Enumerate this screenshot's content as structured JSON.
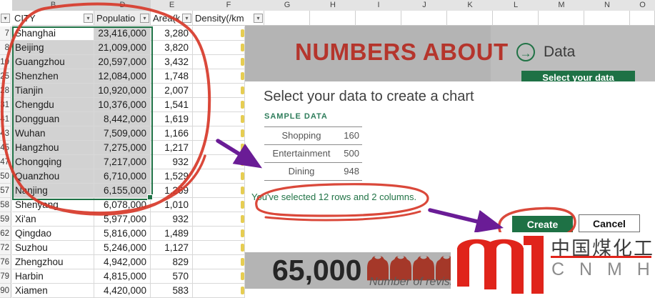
{
  "spreadsheet": {
    "column_letters": [
      "B",
      "D",
      "E",
      "F",
      "G",
      "H",
      "I",
      "J",
      "K",
      "L",
      "M",
      "N",
      "O"
    ],
    "table_headers": [
      {
        "label": "CITY"
      },
      {
        "label": "Populatio"
      },
      {
        "label": "Area(k"
      },
      {
        "label": "Density(/km"
      }
    ],
    "rows": [
      {
        "n": "7",
        "city": "Shanghai",
        "population": "23,416,000",
        "area": "3,280"
      },
      {
        "n": "8",
        "city": "Beijing",
        "population": "21,009,000",
        "area": "3,820"
      },
      {
        "n": "10",
        "city": "Guangzhou",
        "population": "20,597,000",
        "area": "3,432"
      },
      {
        "n": "25",
        "city": "Shenzhen",
        "population": "12,084,000",
        "area": "1,748"
      },
      {
        "n": "28",
        "city": "Tianjin",
        "population": "10,920,000",
        "area": "2,007"
      },
      {
        "n": "31",
        "city": "Chengdu",
        "population": "10,376,000",
        "area": "1,541"
      },
      {
        "n": "41",
        "city": "Dongguan",
        "population": "8,442,000",
        "area": "1,619"
      },
      {
        "n": "43",
        "city": "Wuhan",
        "population": "7,509,000",
        "area": "1,166"
      },
      {
        "n": "45",
        "city": "Hangzhou",
        "population": "7,275,000",
        "area": "1,217"
      },
      {
        "n": "47",
        "city": "Chongqing",
        "population": "7,217,000",
        "area": "932"
      },
      {
        "n": "50",
        "city": "Quanzhou",
        "population": "6,710,000",
        "area": "1,529"
      },
      {
        "n": "57",
        "city": "Nanjing",
        "population": "6,155,000",
        "area": "1,269"
      },
      {
        "n": "58",
        "city": "Shenyang",
        "population": "6,078,000",
        "area": "1,010"
      },
      {
        "n": "59",
        "city": "Xi'an",
        "population": "5,977,000",
        "area": "932"
      },
      {
        "n": "62",
        "city": "Qingdao",
        "population": "5,816,000",
        "area": "1,489"
      },
      {
        "n": "72",
        "city": "Suzhou",
        "population": "5,246,000",
        "area": "1,127"
      },
      {
        "n": "76",
        "city": "Zhengzhou",
        "population": "4,942,000",
        "area": "829"
      },
      {
        "n": "79",
        "city": "Harbin",
        "population": "4,815,000",
        "area": "570"
      },
      {
        "n": "90",
        "city": "Xiamen",
        "population": "4,420,000",
        "area": "583"
      }
    ],
    "selected_row_count": 12,
    "filter_icon": "▾"
  },
  "panel": {
    "banner": {
      "title": "NUMBERS ABOUT",
      "nav_label": "Data",
      "nav_icon": "→"
    },
    "select_data_button": "Select your data",
    "dialog": {
      "heading": "Select your data to create a chart",
      "sample_heading": "SAMPLE DATA",
      "sample_rows": [
        {
          "label": "Shopping",
          "value": "160"
        },
        {
          "label": "Entertainment",
          "value": "500"
        },
        {
          "label": "Dining",
          "value": "948"
        }
      ],
      "selection_message": "You've selected 12 rows and 2 columns.",
      "create_label": "Create",
      "cancel_label": "Cancel"
    },
    "stats": {
      "value": "65,000",
      "caption": "Number of revisi",
      "person_icon_count": 4
    }
  },
  "watermark": {
    "cjk": "中国煤化工",
    "latin": "C N M H G"
  },
  "colors": {
    "excel_green": "#1e7145",
    "selection_gray": "#d2d2d2",
    "banner_gray": "#b4b4b4",
    "banner_red": "#b5352c",
    "annotation_red": "#d7392a",
    "arrow_purple": "#6a1c96",
    "logo_red": "#e0241b",
    "person_icon_red": "#a53829"
  }
}
